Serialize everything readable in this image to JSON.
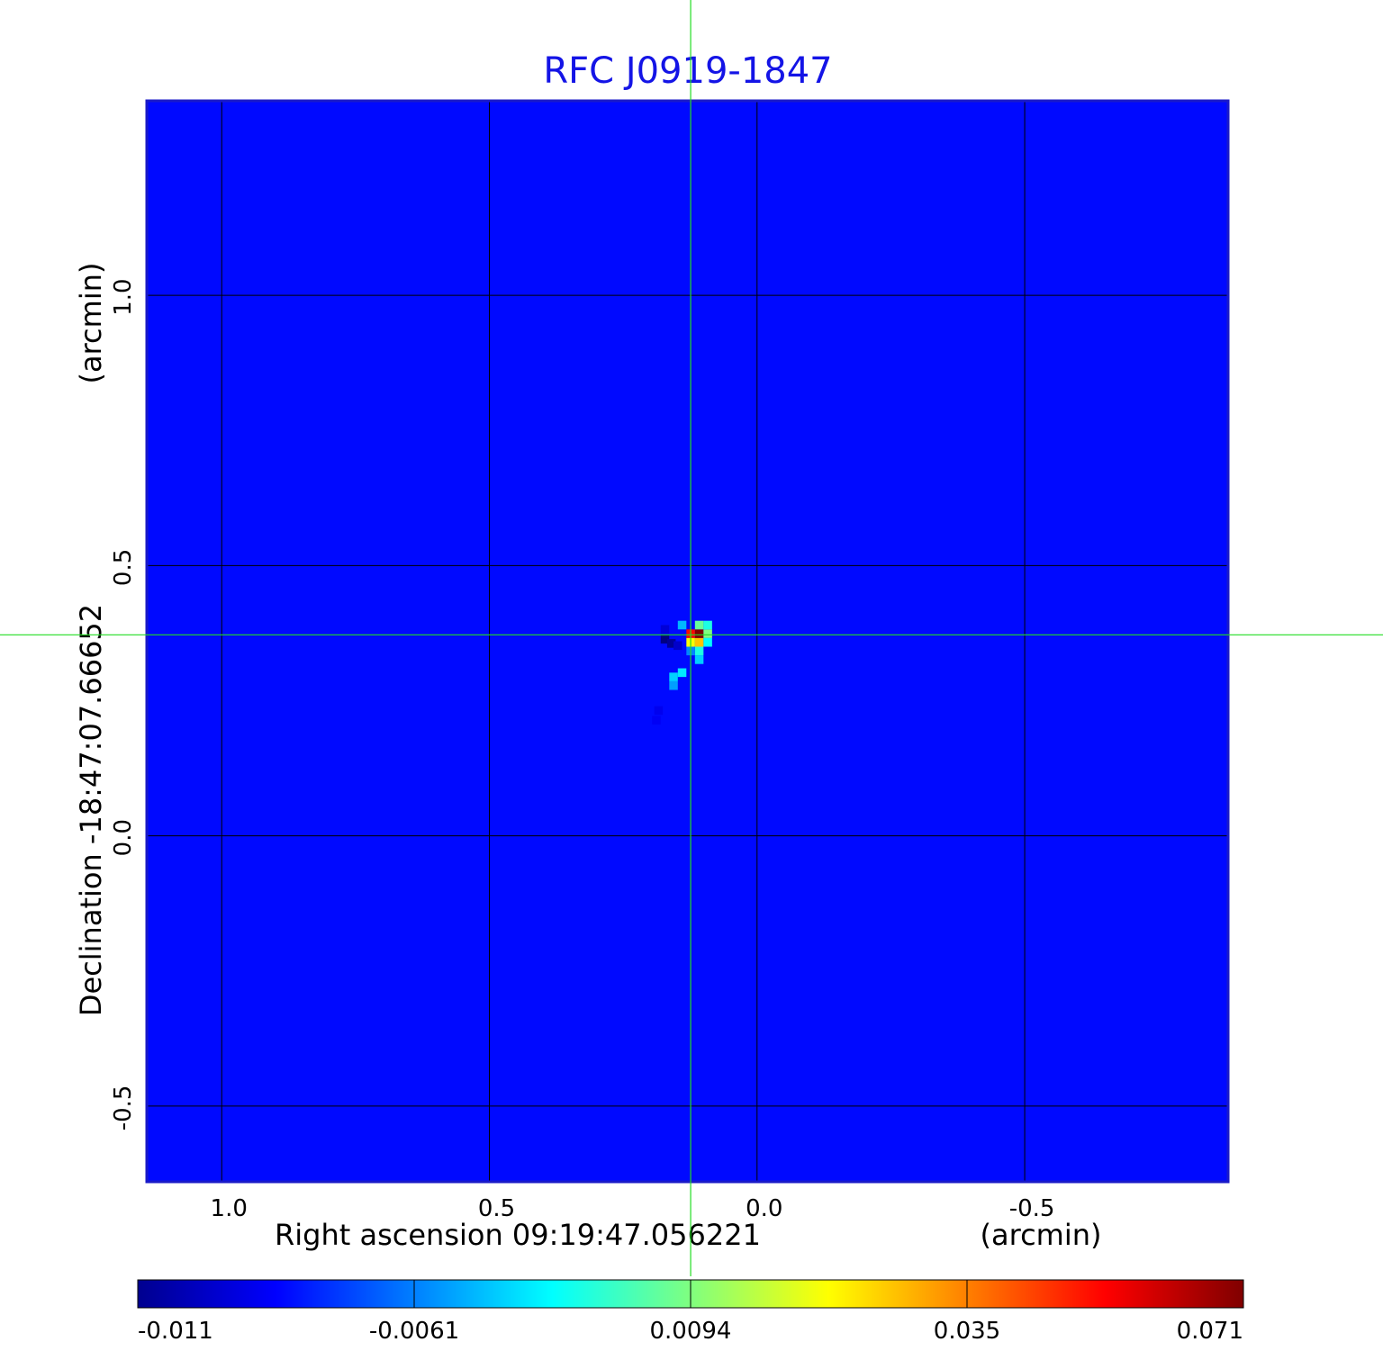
{
  "chart_data": {
    "type": "heatmap",
    "title": "RFC J0919-1847",
    "xlabel": "Right ascension  09:19:47.056221",
    "xlabel_unit": "(arcmin)",
    "ylabel": "Declination  -18:47:07.66652",
    "ylabel_unit": "(arcmin)",
    "x_axis_inverted": true,
    "xlim": [
      1.14,
      -0.88
    ],
    "ylim": [
      -0.64,
      1.36
    ],
    "x_ticks": [
      {
        "value": 1.0,
        "label": "1.0"
      },
      {
        "value": 0.5,
        "label": "0.5"
      },
      {
        "value": 0.0,
        "label": "0.0"
      },
      {
        "value": -0.5,
        "label": "-0.5"
      }
    ],
    "y_ticks": [
      {
        "value": 1.0,
        "label": "1.0"
      },
      {
        "value": 0.5,
        "label": "0.5"
      },
      {
        "value": 0.0,
        "label": "0.0"
      },
      {
        "value": -0.5,
        "label": "-0.5"
      }
    ],
    "grid": true,
    "crosshair": {
      "x": 0.124,
      "y": 0.372
    },
    "background_value": 0.0,
    "colormap": "jet",
    "colorbar": {
      "placement": "bottom",
      "min": -0.011,
      "max": 0.071,
      "ticks": [
        {
          "fraction": 0.0,
          "label": "-0.011"
        },
        {
          "fraction": 0.25,
          "label": "-0.0061"
        },
        {
          "fraction": 0.5,
          "label": "0.0094"
        },
        {
          "fraction": 0.75,
          "label": "0.035"
        },
        {
          "fraction": 1.0,
          "label": "0.071"
        }
      ]
    },
    "features": [
      {
        "x": 0.108,
        "y": 0.374,
        "value": 0.071
      },
      {
        "x": 0.124,
        "y": 0.374,
        "value": 0.06
      },
      {
        "x": 0.108,
        "y": 0.358,
        "value": 0.045
      },
      {
        "x": 0.124,
        "y": 0.358,
        "value": 0.04
      },
      {
        "x": 0.092,
        "y": 0.374,
        "value": 0.03
      },
      {
        "x": 0.108,
        "y": 0.39,
        "value": 0.028
      },
      {
        "x": 0.092,
        "y": 0.39,
        "value": 0.022
      },
      {
        "x": 0.092,
        "y": 0.358,
        "value": 0.02
      },
      {
        "x": 0.108,
        "y": 0.342,
        "value": 0.022
      },
      {
        "x": 0.108,
        "y": 0.326,
        "value": 0.016
      },
      {
        "x": 0.14,
        "y": 0.39,
        "value": 0.014
      },
      {
        "x": 0.14,
        "y": 0.302,
        "value": 0.018
      },
      {
        "x": 0.156,
        "y": 0.294,
        "value": 0.016
      },
      {
        "x": 0.156,
        "y": 0.278,
        "value": 0.012
      },
      {
        "x": 0.124,
        "y": 0.342,
        "value": 0.01
      },
      {
        "x": 0.172,
        "y": 0.364,
        "value": -0.011
      },
      {
        "x": 0.16,
        "y": 0.356,
        "value": -0.009
      },
      {
        "x": 0.148,
        "y": 0.352,
        "value": -0.005
      },
      {
        "x": 0.172,
        "y": 0.382,
        "value": -0.004
      },
      {
        "x": 0.184,
        "y": 0.232,
        "value": -0.002
      },
      {
        "x": 0.188,
        "y": 0.214,
        "value": -0.0015
      }
    ]
  }
}
